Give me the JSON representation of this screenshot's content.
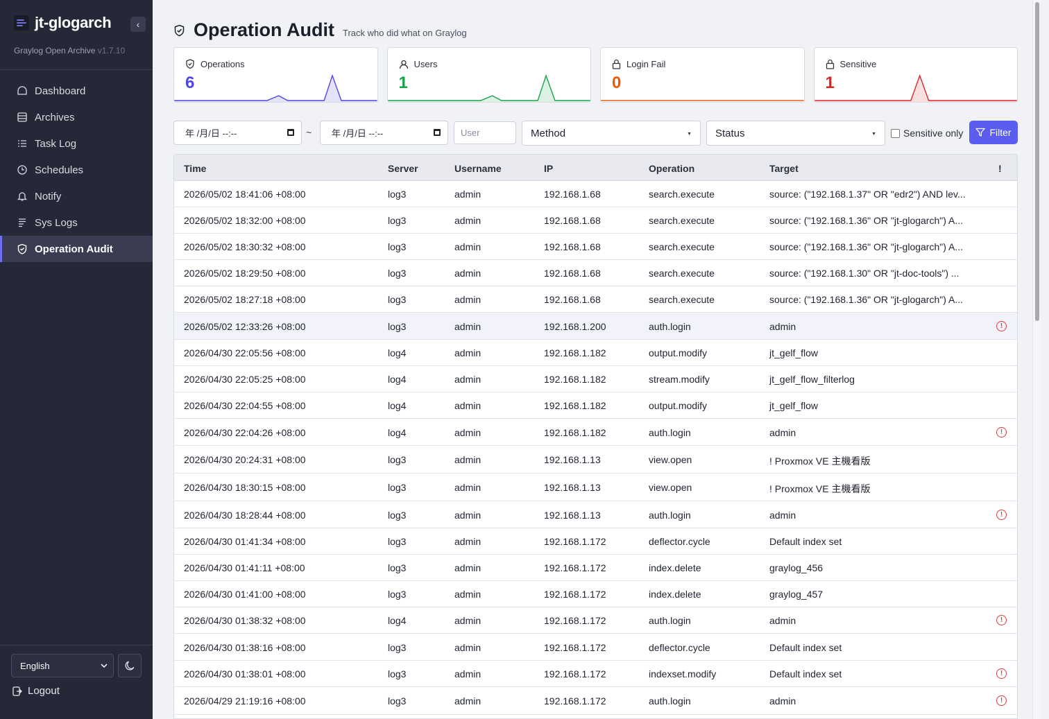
{
  "sidebar": {
    "app_title": "jt-glogarch",
    "subtitle": "Graylog Open Archive",
    "version": "v1.7.10",
    "collapse_glyph": "‹",
    "items": [
      {
        "label": "Dashboard",
        "icon": "dashboard-icon"
      },
      {
        "label": "Archives",
        "icon": "archive-icon"
      },
      {
        "label": "Task Log",
        "icon": "list-icon"
      },
      {
        "label": "Schedules",
        "icon": "clock-icon"
      },
      {
        "label": "Notify",
        "icon": "bell-icon"
      },
      {
        "label": "Sys Logs",
        "icon": "lines-icon"
      },
      {
        "label": "Operation Audit",
        "icon": "shield-icon",
        "active": true
      }
    ],
    "language": "English",
    "logout_label": "Logout"
  },
  "header": {
    "title": "Operation Audit",
    "subtitle": "Track who did what on Graylog"
  },
  "cards": [
    {
      "label": "Operations",
      "value": "6",
      "color": "#4f46e5"
    },
    {
      "label": "Users",
      "value": "1",
      "color": "#16a34a"
    },
    {
      "label": "Login Fail",
      "value": "0",
      "color": "#ea580c"
    },
    {
      "label": "Sensitive",
      "value": "1",
      "color": "#dc2626"
    }
  ],
  "filters": {
    "from_date": "年 /月/日 --:--",
    "to_date": "年 /月/日 --:--",
    "range_separator": "~",
    "user_placeholder": "User",
    "method_label": "Method",
    "status_label": "Status",
    "sensitive_only_label": "Sensitive only",
    "filter_button": "Filter"
  },
  "table": {
    "columns": [
      "Time",
      "Server",
      "Username",
      "IP",
      "Operation",
      "Target",
      "!"
    ],
    "rows": [
      {
        "time": "2026/05/02 18:41:06 +08:00",
        "server": "log3",
        "username": "admin",
        "ip": "192.168.1.68",
        "operation": "search.execute",
        "target": "source: (\"192.168.1.37\" OR \"edr2\") AND lev...",
        "flag": false
      },
      {
        "time": "2026/05/02 18:32:00 +08:00",
        "server": "log3",
        "username": "admin",
        "ip": "192.168.1.68",
        "operation": "search.execute",
        "target": "source: (\"192.168.1.36\" OR \"jt-glogarch\") A...",
        "flag": false
      },
      {
        "time": "2026/05/02 18:30:32 +08:00",
        "server": "log3",
        "username": "admin",
        "ip": "192.168.1.68",
        "operation": "search.execute",
        "target": "source: (\"192.168.1.36\" OR \"jt-glogarch\") A...",
        "flag": false
      },
      {
        "time": "2026/05/02 18:29:50 +08:00",
        "server": "log3",
        "username": "admin",
        "ip": "192.168.1.68",
        "operation": "search.execute",
        "target": "source: (\"192.168.1.30\" OR \"jt-doc-tools\") ...",
        "flag": false
      },
      {
        "time": "2026/05/02 18:27:18 +08:00",
        "server": "log3",
        "username": "admin",
        "ip": "192.168.1.68",
        "operation": "search.execute",
        "target": "source: (\"192.168.1.36\" OR \"jt-glogarch\") A...",
        "flag": false
      },
      {
        "time": "2026/05/02 12:33:26 +08:00",
        "server": "log3",
        "username": "admin",
        "ip": "192.168.1.200",
        "operation": "auth.login",
        "target": "admin",
        "flag": true
      },
      {
        "time": "2026/04/30 22:05:56 +08:00",
        "server": "log4",
        "username": "admin",
        "ip": "192.168.1.182",
        "operation": "output.modify",
        "target": "jt_gelf_flow",
        "flag": false
      },
      {
        "time": "2026/04/30 22:05:25 +08:00",
        "server": "log4",
        "username": "admin",
        "ip": "192.168.1.182",
        "operation": "stream.modify",
        "target": "jt_gelf_flow_filterlog",
        "flag": false
      },
      {
        "time": "2026/04/30 22:04:55 +08:00",
        "server": "log4",
        "username": "admin",
        "ip": "192.168.1.182",
        "operation": "output.modify",
        "target": "jt_gelf_flow",
        "flag": false
      },
      {
        "time": "2026/04/30 22:04:26 +08:00",
        "server": "log4",
        "username": "admin",
        "ip": "192.168.1.182",
        "operation": "auth.login",
        "target": "admin",
        "flag": true
      },
      {
        "time": "2026/04/30 20:24:31 +08:00",
        "server": "log3",
        "username": "admin",
        "ip": "192.168.1.13",
        "operation": "view.open",
        "target": "! Proxmox VE 主機看版",
        "flag": false
      },
      {
        "time": "2026/04/30 18:30:15 +08:00",
        "server": "log3",
        "username": "admin",
        "ip": "192.168.1.13",
        "operation": "view.open",
        "target": "! Proxmox VE 主機看版",
        "flag": false
      },
      {
        "time": "2026/04/30 18:28:44 +08:00",
        "server": "log3",
        "username": "admin",
        "ip": "192.168.1.13",
        "operation": "auth.login",
        "target": "admin",
        "flag": true
      },
      {
        "time": "2026/04/30 01:41:34 +08:00",
        "server": "log3",
        "username": "admin",
        "ip": "192.168.1.172",
        "operation": "deflector.cycle",
        "target": "Default index set",
        "flag": false
      },
      {
        "time": "2026/04/30 01:41:11 +08:00",
        "server": "log3",
        "username": "admin",
        "ip": "192.168.1.172",
        "operation": "index.delete",
        "target": "graylog_456",
        "flag": false
      },
      {
        "time": "2026/04/30 01:41:00 +08:00",
        "server": "log3",
        "username": "admin",
        "ip": "192.168.1.172",
        "operation": "index.delete",
        "target": "graylog_457",
        "flag": false
      },
      {
        "time": "2026/04/30 01:38:32 +08:00",
        "server": "log4",
        "username": "admin",
        "ip": "192.168.1.172",
        "operation": "auth.login",
        "target": "admin",
        "flag": true
      },
      {
        "time": "2026/04/30 01:38:16 +08:00",
        "server": "log3",
        "username": "admin",
        "ip": "192.168.1.172",
        "operation": "deflector.cycle",
        "target": "Default index set",
        "flag": false
      },
      {
        "time": "2026/04/30 01:38:01 +08:00",
        "server": "log3",
        "username": "admin",
        "ip": "192.168.1.172",
        "operation": "indexset.modify",
        "target": "Default index set",
        "flag": true
      },
      {
        "time": "2026/04/29 21:19:16 +08:00",
        "server": "log3",
        "username": "admin",
        "ip": "192.168.1.172",
        "operation": "auth.login",
        "target": "admin",
        "flag": true
      }
    ]
  }
}
